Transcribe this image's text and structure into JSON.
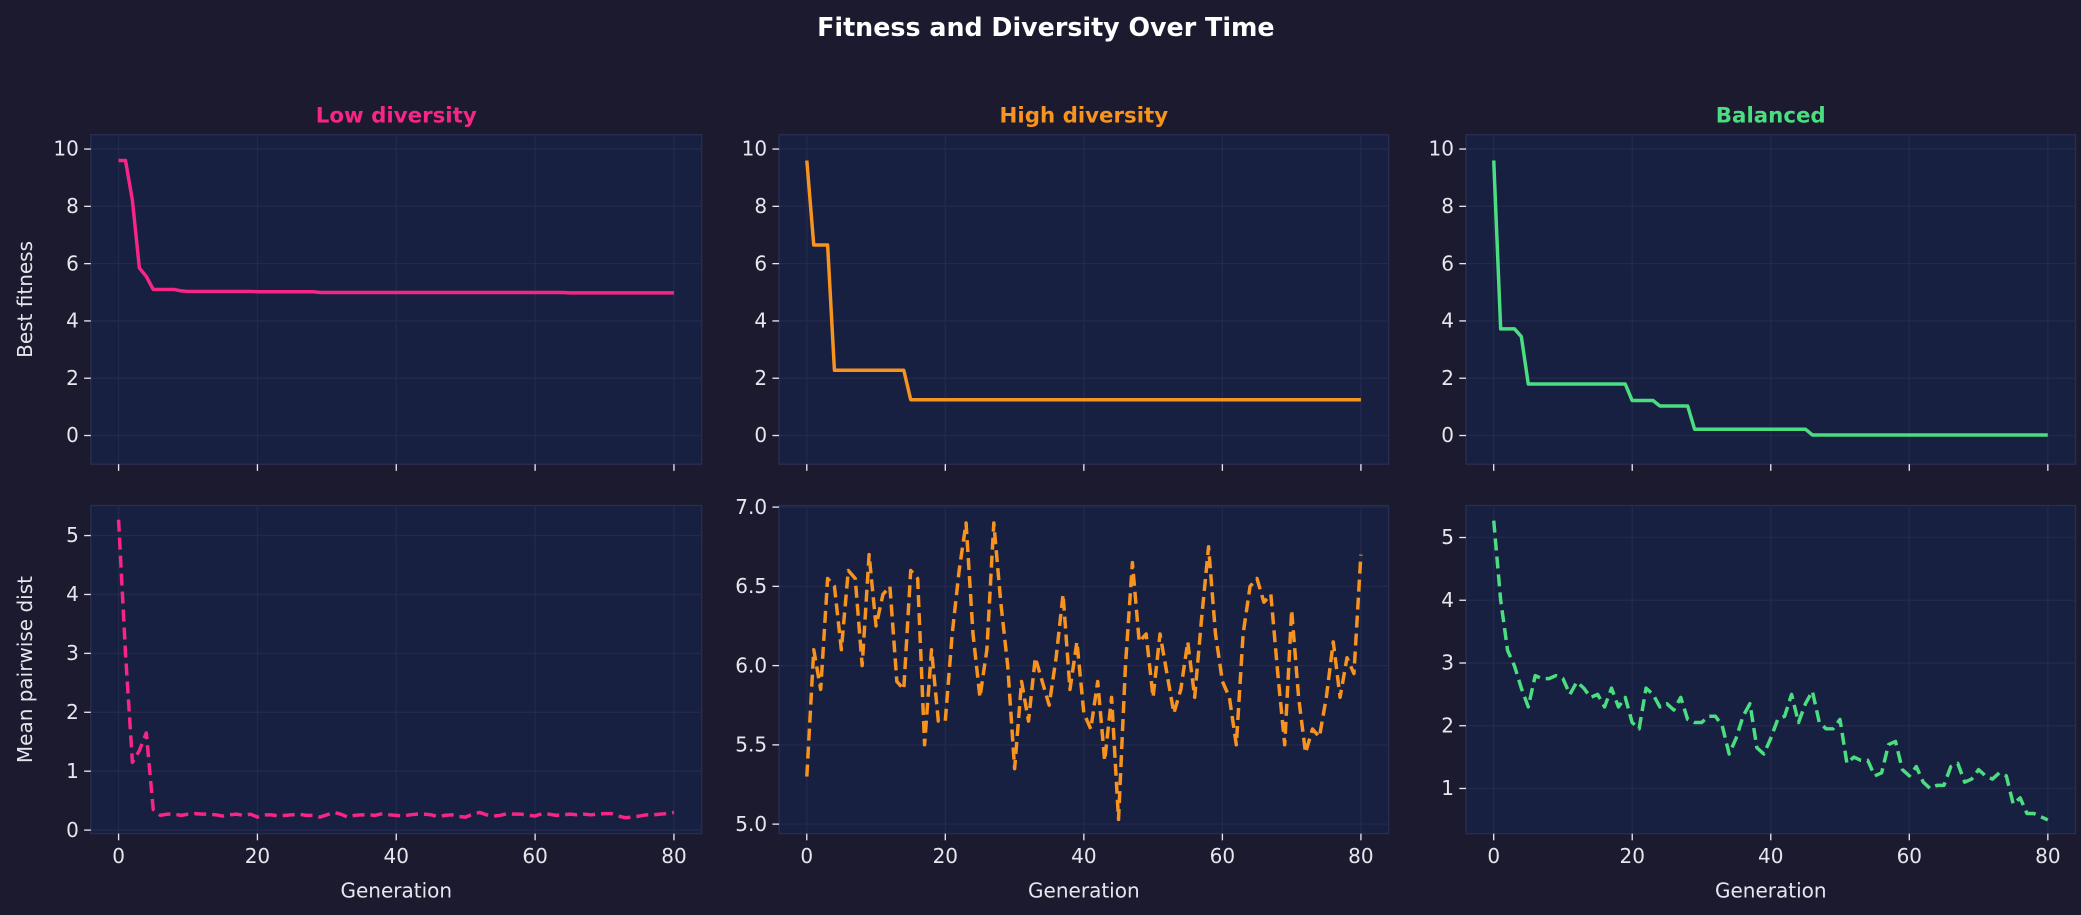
{
  "figure": {
    "title": "Fitness and Diversity Over Time",
    "background": "#1b1a2e",
    "panel_background": "#172040"
  },
  "chart_data": [
    {
      "type": "line",
      "row": "top",
      "title": "Low diversity",
      "color": "#f72585",
      "linestyle": "solid",
      "ylabel": "Best fitness",
      "xlabel": "",
      "xlim": [
        -4,
        84
      ],
      "ylim": [
        -1,
        10.5
      ],
      "xticks": [
        0,
        20,
        40,
        60,
        80
      ],
      "show_xticklabels": false,
      "yticks": [
        "0",
        "2",
        "4",
        "6",
        "8",
        "10"
      ],
      "grid": true,
      "y": [
        9.6,
        9.6,
        8.2,
        5.85,
        5.55,
        5.1,
        5.1,
        5.1,
        5.1,
        5.05,
        5.03,
        5.03,
        5.03,
        5.03,
        5.03,
        5.03,
        5.03,
        5.03,
        5.03,
        5.03,
        5.02,
        5.02,
        5.02,
        5.02,
        5.02,
        5.02,
        5.02,
        5.02,
        5.02,
        4.99,
        4.99,
        4.99,
        4.99,
        4.99,
        4.99,
        4.99,
        4.99,
        4.99,
        4.99,
        4.99,
        4.99,
        4.99,
        4.99,
        4.99,
        4.99,
        4.99,
        4.99,
        4.99,
        4.99,
        4.99,
        4.99,
        4.99,
        4.99,
        4.99,
        4.99,
        4.99,
        4.99,
        4.99,
        4.99,
        4.99,
        4.99,
        4.99,
        4.99,
        4.99,
        4.99,
        4.98,
        4.98,
        4.98,
        4.98,
        4.98,
        4.98,
        4.98,
        4.98,
        4.98,
        4.98,
        4.98,
        4.98,
        4.98,
        4.98,
        4.98,
        4.98
      ]
    },
    {
      "type": "line",
      "row": "top",
      "title": "High diversity",
      "color": "#f7931e",
      "linestyle": "solid",
      "ylabel": "",
      "xlabel": "",
      "xlim": [
        -4,
        84
      ],
      "ylim": [
        -1,
        10.5
      ],
      "xticks": [
        0,
        20,
        40,
        60,
        80
      ],
      "show_xticklabels": false,
      "yticks": [
        "0",
        "2",
        "4",
        "6",
        "8",
        "10"
      ],
      "grid": true,
      "y": [
        9.6,
        6.65,
        6.65,
        6.65,
        2.28,
        2.28,
        2.28,
        2.28,
        2.28,
        2.28,
        2.28,
        2.28,
        2.28,
        2.28,
        2.28,
        1.25,
        1.25,
        1.25,
        1.25,
        1.25,
        1.25,
        1.25,
        1.25,
        1.25,
        1.25,
        1.25,
        1.25,
        1.25,
        1.25,
        1.25,
        1.25,
        1.25,
        1.25,
        1.25,
        1.25,
        1.25,
        1.25,
        1.25,
        1.25,
        1.25,
        1.25,
        1.25,
        1.25,
        1.25,
        1.25,
        1.25,
        1.25,
        1.25,
        1.25,
        1.25,
        1.25,
        1.25,
        1.25,
        1.25,
        1.25,
        1.25,
        1.25,
        1.25,
        1.25,
        1.25,
        1.25,
        1.25,
        1.25,
        1.25,
        1.25,
        1.25,
        1.25,
        1.25,
        1.25,
        1.25,
        1.25,
        1.25,
        1.25,
        1.25,
        1.25,
        1.25,
        1.25,
        1.25,
        1.25,
        1.25,
        1.25
      ]
    },
    {
      "type": "line",
      "row": "top",
      "title": "Balanced",
      "color": "#4ade80",
      "linestyle": "solid",
      "ylabel": "",
      "xlabel": "",
      "xlim": [
        -4,
        84
      ],
      "ylim": [
        -1,
        10.5
      ],
      "xticks": [
        0,
        20,
        40,
        60,
        80
      ],
      "show_xticklabels": false,
      "yticks": [
        "0",
        "2",
        "4",
        "6",
        "8",
        "10"
      ],
      "grid": true,
      "y": [
        9.6,
        3.72,
        3.72,
        3.72,
        3.45,
        1.8,
        1.8,
        1.8,
        1.8,
        1.8,
        1.8,
        1.8,
        1.8,
        1.8,
        1.8,
        1.8,
        1.8,
        1.8,
        1.8,
        1.8,
        1.22,
        1.22,
        1.22,
        1.22,
        1.03,
        1.03,
        1.03,
        1.03,
        1.03,
        0.22,
        0.22,
        0.22,
        0.22,
        0.22,
        0.22,
        0.22,
        0.22,
        0.22,
        0.22,
        0.22,
        0.22,
        0.22,
        0.22,
        0.22,
        0.22,
        0.22,
        0.02,
        0.02,
        0.02,
        0.02,
        0.02,
        0.02,
        0.02,
        0.02,
        0.02,
        0.02,
        0.02,
        0.02,
        0.02,
        0.02,
        0.02,
        0.02,
        0.02,
        0.02,
        0.02,
        0.02,
        0.02,
        0.02,
        0.02,
        0.02,
        0.02,
        0.02,
        0.02,
        0.02,
        0.02,
        0.02,
        0.02,
        0.02,
        0.02,
        0.02,
        0.02
      ]
    },
    {
      "type": "line",
      "row": "bottom",
      "title": "",
      "color": "#f72585",
      "linestyle": "dashed",
      "ylabel": "Mean pairwise dist",
      "xlabel": "Generation",
      "xlim": [
        -4,
        84
      ],
      "ylim": [
        -0.06,
        5.51
      ],
      "xticks": [
        0,
        20,
        40,
        60,
        80
      ],
      "show_xticklabels": true,
      "yticks": [
        "0",
        "1",
        "2",
        "3",
        "4",
        "5"
      ],
      "grid": true,
      "y": [
        5.27,
        3.0,
        1.15,
        1.35,
        1.65,
        0.35,
        0.25,
        0.27,
        0.27,
        0.25,
        0.27,
        0.28,
        0.27,
        0.27,
        0.26,
        0.24,
        0.26,
        0.27,
        0.25,
        0.27,
        0.22,
        0.26,
        0.26,
        0.24,
        0.25,
        0.26,
        0.27,
        0.25,
        0.25,
        0.22,
        0.26,
        0.3,
        0.27,
        0.22,
        0.25,
        0.26,
        0.26,
        0.25,
        0.28,
        0.26,
        0.25,
        0.24,
        0.26,
        0.27,
        0.27,
        0.26,
        0.23,
        0.25,
        0.26,
        0.23,
        0.22,
        0.27,
        0.3,
        0.26,
        0.24,
        0.25,
        0.28,
        0.27,
        0.27,
        0.25,
        0.24,
        0.28,
        0.27,
        0.25,
        0.26,
        0.27,
        0.26,
        0.27,
        0.26,
        0.27,
        0.28,
        0.28,
        0.24,
        0.21,
        0.22,
        0.24,
        0.26,
        0.26,
        0.27,
        0.28,
        0.3
      ]
    },
    {
      "type": "line",
      "row": "bottom",
      "title": "",
      "color": "#f7931e",
      "linestyle": "dashed",
      "ylabel": "",
      "xlabel": "Generation",
      "xlim": [
        -4,
        84
      ],
      "ylim": [
        4.94,
        7.01
      ],
      "xticks": [
        0,
        20,
        40,
        60,
        80
      ],
      "show_xticklabels": true,
      "yticks": [
        "5.0",
        "5.5",
        "6.0",
        "6.5",
        "7.0"
      ],
      "grid": true,
      "y": [
        5.3,
        6.1,
        5.85,
        6.55,
        6.5,
        6.1,
        6.6,
        6.55,
        6.0,
        6.7,
        6.25,
        6.45,
        6.5,
        5.9,
        5.85,
        6.6,
        6.55,
        5.5,
        6.1,
        5.65,
        5.65,
        6.2,
        6.6,
        6.9,
        6.2,
        5.8,
        6.1,
        6.9,
        6.4,
        6.0,
        5.35,
        5.9,
        5.65,
        6.05,
        5.9,
        5.75,
        6.05,
        6.45,
        5.85,
        6.15,
        5.7,
        5.6,
        5.9,
        5.4,
        5.8,
        5.03,
        6.0,
        6.65,
        6.15,
        6.2,
        5.8,
        6.2,
        5.95,
        5.7,
        5.85,
        6.15,
        5.8,
        6.3,
        6.75,
        6.2,
        5.9,
        5.8,
        5.5,
        6.2,
        6.5,
        6.55,
        6.4,
        6.45,
        5.95,
        5.5,
        6.35,
        5.8,
        5.45,
        5.6,
        5.55,
        5.8,
        6.15,
        5.8,
        6.05,
        5.95,
        6.7
      ]
    },
    {
      "type": "line",
      "row": "bottom",
      "title": "",
      "color": "#4ade80",
      "linestyle": "dashed",
      "ylabel": "",
      "xlabel": "Generation",
      "xlim": [
        -4,
        84
      ],
      "ylim": [
        0.28,
        5.51
      ],
      "xticks": [
        0,
        20,
        40,
        60,
        80
      ],
      "show_xticklabels": true,
      "yticks": [
        "1",
        "2",
        "3",
        "4",
        "5"
      ],
      "grid": true,
      "y": [
        5.27,
        4.0,
        3.2,
        2.95,
        2.6,
        2.3,
        2.8,
        2.75,
        2.75,
        2.8,
        2.75,
        2.5,
        2.7,
        2.6,
        2.45,
        2.5,
        2.3,
        2.6,
        2.3,
        2.45,
        2.05,
        1.95,
        2.6,
        2.5,
        2.3,
        2.35,
        2.25,
        2.45,
        2.1,
        2.05,
        2.05,
        2.15,
        2.15,
        2.0,
        1.55,
        1.8,
        2.15,
        2.35,
        1.65,
        1.55,
        1.8,
        2.1,
        2.15,
        2.5,
        2.05,
        2.35,
        2.55,
        2.05,
        1.95,
        1.95,
        2.1,
        1.4,
        1.5,
        1.45,
        1.45,
        1.2,
        1.25,
        1.7,
        1.75,
        1.3,
        1.2,
        1.35,
        1.1,
        1.0,
        1.05,
        1.05,
        1.35,
        1.4,
        1.1,
        1.15,
        1.3,
        1.2,
        1.15,
        1.25,
        1.2,
        0.75,
        0.85,
        0.6,
        0.6,
        0.55,
        0.5
      ]
    }
  ]
}
